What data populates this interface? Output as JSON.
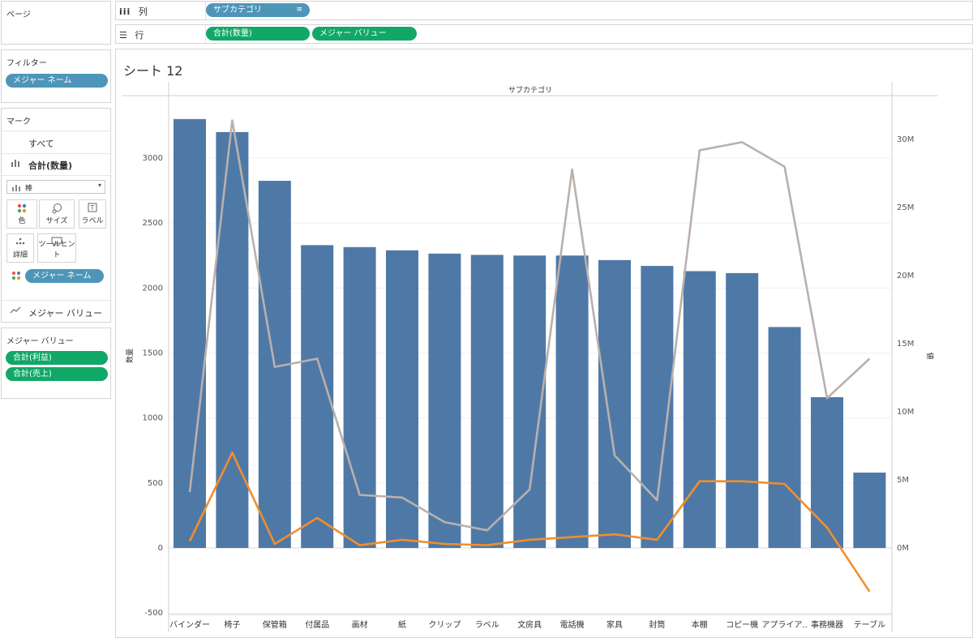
{
  "left_panel": {
    "pages_title": "ページ",
    "filters_title": "フィルター",
    "filter_pills": [
      "メジャー ネーム"
    ],
    "marks_title": "マーク",
    "marks_all": "すべて",
    "marks_sum_quantity": "合計(数量)",
    "mark_type": "棒",
    "mark_buttons": [
      "色",
      "サイズ",
      "ラベル",
      "詳細",
      "ツールヒント"
    ],
    "color_pill": "メジャー ネーム",
    "measure_values_card": "メジャー バリュー",
    "measure_values_title": "メジャー バリュー",
    "measure_value_pills": [
      "合計(利益)",
      "合計(売上)"
    ]
  },
  "shelves": {
    "columns_label": "列",
    "columns_pill": "サブカテゴリ",
    "rows_label": "行",
    "rows_pills": [
      "合計(数量)",
      "メジャー バリュー"
    ]
  },
  "sheet": {
    "title": "シート 12",
    "header": "サブカテゴリ",
    "left_axis_label": "数量",
    "right_axis_label": "値"
  },
  "colors": {
    "bar": "#4e79a7",
    "profit_line": "#f28e2b",
    "sales_line": "#bab0ac",
    "pill_blue": "#4e96b9",
    "pill_green": "#11a867"
  },
  "chart_data": {
    "type": "bar",
    "categories": [
      "バインダー",
      "椅子",
      "保管箱",
      "付属品",
      "画材",
      "紙",
      "クリップ",
      "ラベル",
      "文房具",
      "電話機",
      "家具",
      "封筒",
      "本棚",
      "コピー機",
      "アプライア..",
      "事務機器",
      "テーブル"
    ],
    "series": [
      {
        "name": "合計(数量)",
        "axis": "left",
        "type": "bar",
        "values": [
          3300,
          3200,
          2825,
          2330,
          2315,
          2290,
          2265,
          2255,
          2250,
          2250,
          2215,
          2170,
          2130,
          2115,
          1700,
          1160,
          580
        ]
      },
      {
        "name": "合計(売上)",
        "axis": "right",
        "type": "line",
        "values": [
          4100000,
          31400000,
          13300000,
          13900000,
          3900000,
          3700000,
          1900000,
          1300000,
          4300000,
          27800000,
          6800000,
          3500000,
          29200000,
          29800000,
          28000000,
          11000000,
          13900000
        ]
      },
      {
        "name": "合計(利益)",
        "axis": "right",
        "type": "line",
        "values": [
          500000,
          7000000,
          300000,
          2200000,
          200000,
          600000,
          300000,
          200000,
          600000,
          800000,
          1000000,
          600000,
          4900000,
          4900000,
          4700000,
          1500000,
          -3200000
        ]
      }
    ],
    "left_axis": {
      "label": "数量",
      "ticks": [
        3000,
        2500,
        2000,
        1500,
        1000,
        500,
        0,
        -500
      ]
    },
    "right_axis": {
      "label": "値",
      "ticks": [
        "30M",
        "25M",
        "20M",
        "15M",
        "10M",
        "5M",
        "0M"
      ],
      "tick_values": [
        30000000,
        25000000,
        20000000,
        15000000,
        10000000,
        5000000,
        0
      ]
    },
    "grid": true
  }
}
